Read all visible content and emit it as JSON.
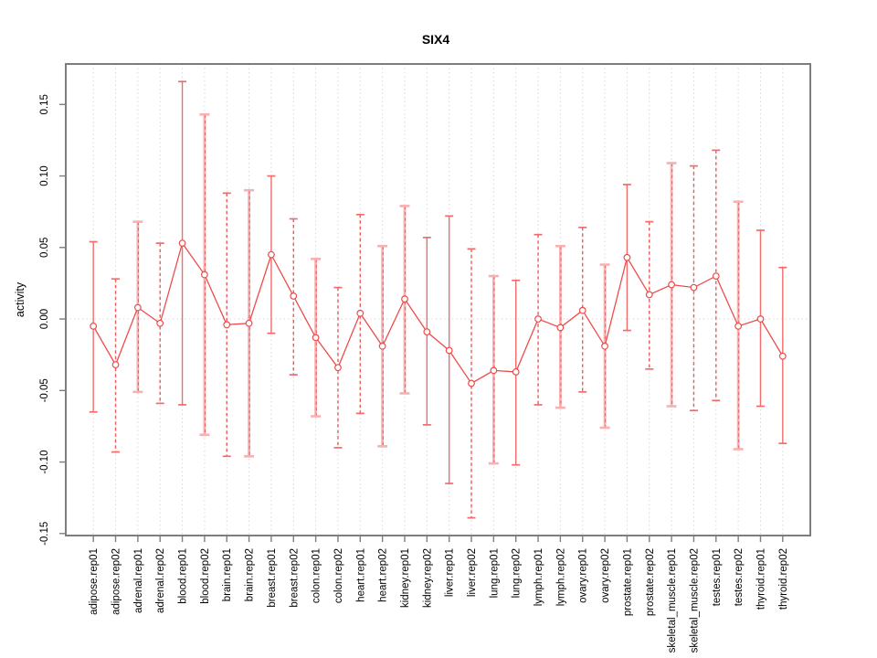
{
  "chart_data": {
    "type": "line",
    "subtype": "points-with-error-bars",
    "title": "SIX4",
    "xlabel": "",
    "ylabel": "activity",
    "legend": "none",
    "grid": {
      "vertical": "dotted at every category",
      "horizontal": "dotted at zero only"
    },
    "ylim": [
      -0.1514,
      0.1783
    ],
    "y_ticks": [
      -0.15,
      -0.1,
      -0.05,
      0.0,
      0.05,
      0.1,
      0.15
    ],
    "categories": [
      "adipose.rep01",
      "adipose.rep02",
      "adrenal.rep01",
      "adrenal.rep02",
      "blood.rep01",
      "blood.rep02",
      "brain.rep01",
      "brain.rep02",
      "breast.rep01",
      "breast.rep02",
      "colon.rep01",
      "colon.rep02",
      "heart.rep01",
      "heart.rep02",
      "kidney.rep01",
      "kidney.rep02",
      "liver.rep01",
      "liver.rep02",
      "lung.rep01",
      "lung.rep02",
      "lymph.rep01",
      "lymph.rep02",
      "ovary.rep01",
      "ovary.rep02",
      "prostate.rep01",
      "prostate.rep02",
      "skeletal_muscle.rep01",
      "skeletal_muscle.rep02",
      "testes.rep01",
      "testes.rep02",
      "thyroid.rep01",
      "thyroid.rep02"
    ],
    "values": [
      -0.005,
      -0.032,
      0.008,
      -0.003,
      0.053,
      0.031,
      -0.004,
      -0.003,
      0.045,
      0.016,
      -0.013,
      -0.034,
      0.004,
      -0.019,
      0.014,
      -0.009,
      -0.022,
      -0.045,
      -0.036,
      -0.037,
      0.0,
      -0.006,
      0.006,
      -0.019,
      0.043,
      0.017,
      0.024,
      0.022,
      0.03,
      -0.005,
      0.0,
      -0.026
    ],
    "ci_low": [
      -0.065,
      -0.093,
      -0.051,
      -0.059,
      -0.06,
      -0.081,
      -0.096,
      -0.096,
      -0.01,
      -0.039,
      -0.068,
      -0.09,
      -0.066,
      -0.089,
      -0.052,
      -0.074,
      -0.115,
      -0.139,
      -0.101,
      -0.102,
      -0.06,
      -0.062,
      -0.051,
      -0.076,
      -0.008,
      -0.035,
      -0.061,
      -0.064,
      -0.057,
      -0.091,
      -0.061,
      -0.087
    ],
    "ci_high": [
      0.054,
      0.028,
      0.068,
      0.053,
      0.166,
      0.143,
      0.088,
      0.09,
      0.1,
      0.07,
      0.042,
      0.022,
      0.073,
      0.051,
      0.079,
      0.057,
      0.072,
      0.049,
      0.03,
      0.027,
      0.059,
      0.051,
      0.064,
      0.038,
      0.094,
      0.068,
      0.109,
      0.107,
      0.118,
      0.082,
      0.062,
      0.036
    ],
    "bar_styles": [
      "solid",
      "dashed",
      "thick",
      "dashed",
      "solid",
      "thick",
      "dashed",
      "thick",
      "solid",
      "dashed",
      "thick",
      "dashed",
      "dashed",
      "thick",
      "thick",
      "solid",
      "solid",
      "dashed",
      "thick",
      "solid",
      "dashed",
      "thick",
      "dashed",
      "thick",
      "solid",
      "dashed",
      "thick",
      "dashed",
      "dashed",
      "thick",
      "solid",
      "solid"
    ],
    "colors": {
      "background": "#ffffff",
      "point_stroke": "#ee4b4b",
      "point_fill": "#ffffff",
      "connector_line": "#ee4b4b",
      "bar_solid": "#f26c6c",
      "bar_dashed": "#ee5a5a",
      "bar_thick": "#f8b0b0",
      "grid": "#d9d9d9",
      "frame": "#7d7d7d",
      "tick": "#7d7d7d",
      "text": "#000000"
    }
  }
}
